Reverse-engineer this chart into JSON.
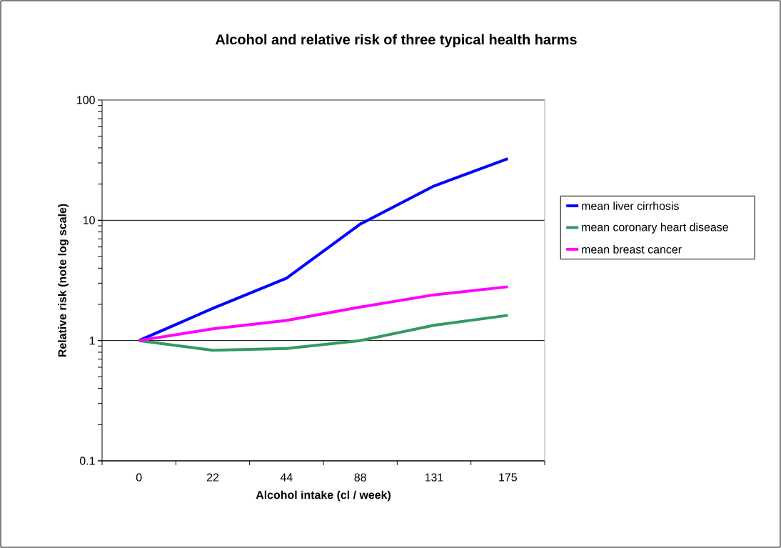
{
  "chart_data": {
    "type": "line",
    "title": "Alcohol and relative risk of three typical health harms",
    "xlabel": "Alcohol intake (cl / week)",
    "ylabel": "Relative risk (note log scale)",
    "categories": [
      "0",
      "22",
      "44",
      "88",
      "131",
      "175"
    ],
    "series": [
      {
        "name": "mean liver cirrhosis",
        "color": "#0000ff",
        "values": [
          1.0,
          1.85,
          3.3,
          9.3,
          19.3,
          32.5
        ]
      },
      {
        "name": "mean coronary heart disease",
        "color": "#339966",
        "values": [
          1.0,
          0.83,
          0.86,
          1.0,
          1.34,
          1.62
        ]
      },
      {
        "name": "mean breast cancer",
        "color": "#ff00ff",
        "values": [
          1.0,
          1.25,
          1.47,
          1.9,
          2.4,
          2.8
        ]
      }
    ],
    "log": "y",
    "ylim": [
      0.1,
      100
    ],
    "yticks": [
      0.1,
      1,
      10,
      100
    ],
    "grid": "y",
    "legend": "right"
  }
}
